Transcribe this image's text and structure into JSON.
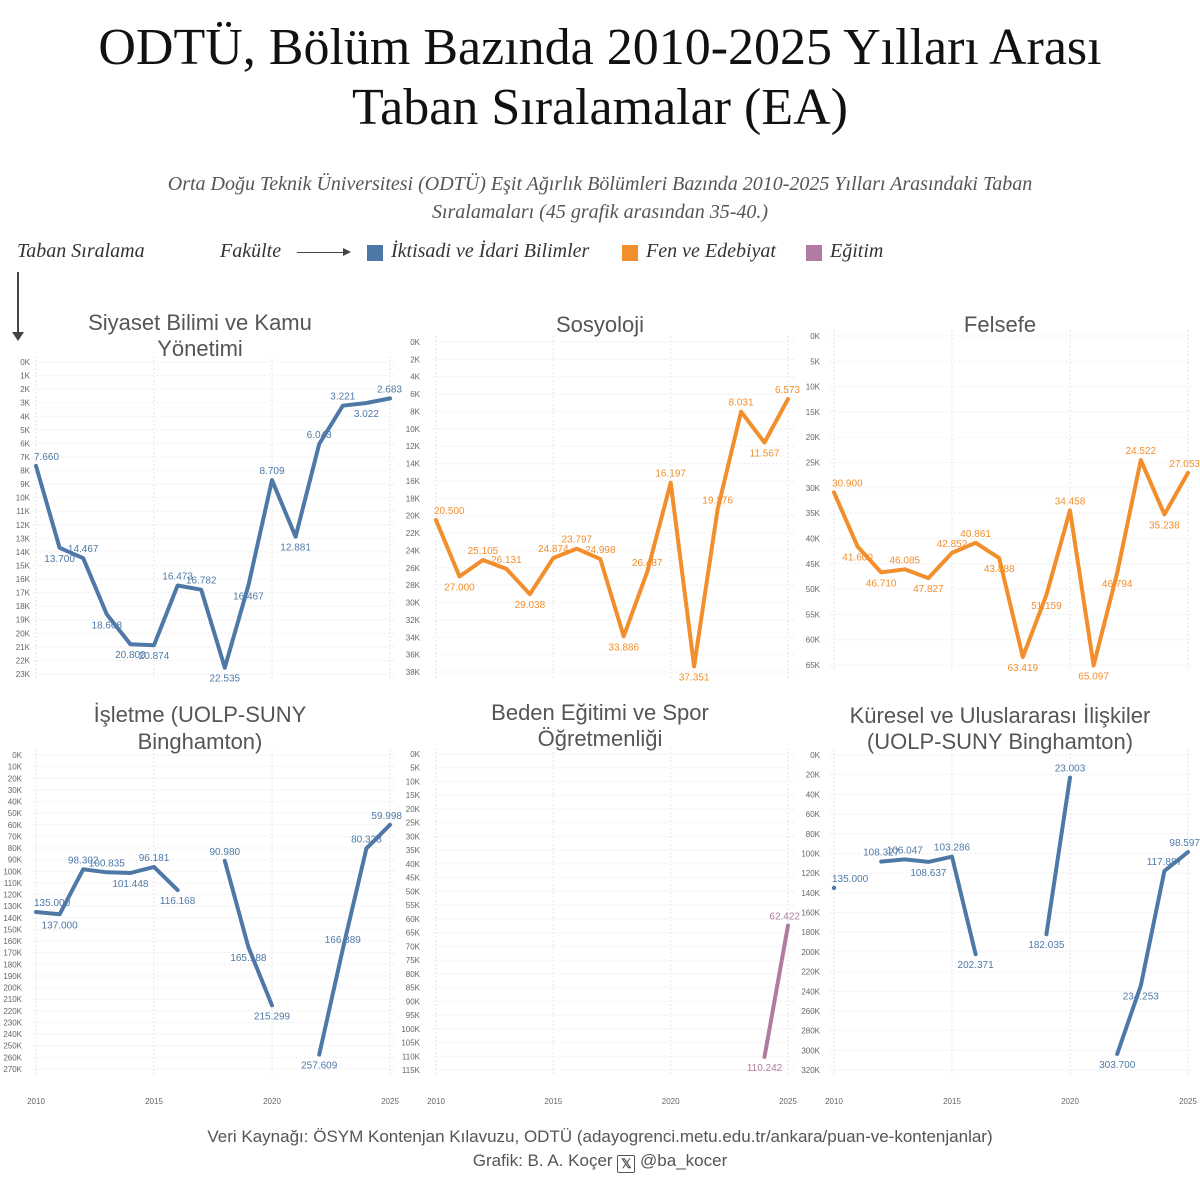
{
  "title_line1": "ODTÜ, Bölüm Bazında 2010-2025 Yılları Arası",
  "title_line2": "Taban Sıralamalar (EA)",
  "subtitle_line1": "Orta Doğu Teknik Üniversitesi (ODTÜ) Eşit Ağırlık Bölümleri Bazında 2010-2025 Yılları Arasındaki Taban",
  "subtitle_line2": "Sıralamaları (45 grafik arasından 35-40.)",
  "legend": {
    "y_label": "Taban Sıralama",
    "faculty_label": "Fakülte",
    "items": [
      {
        "label": "İktisadi ve İdari Bilimler",
        "color": "#4e79a7"
      },
      {
        "label": "Fen ve Edebiyat",
        "color": "#f28e2b"
      },
      {
        "label": "Eğitim",
        "color": "#b07aa1"
      }
    ]
  },
  "footer": {
    "source": "Veri Kaynağı: ÖSYM Kontenjan Kılavuzu, ODTÜ (adayogrenci.metu.edu.tr/ankara/puan-ve-kontenjanlar)",
    "credit_prefix": "Grafik: B. A. Koçer",
    "x_logo": "𝕏",
    "handle": "@ba_kocer"
  },
  "chart_data": [
    {
      "type": "line",
      "title_lines": [
        "Siyaset Bilimi ve Kamu",
        "Yönetimi"
      ],
      "color": "#4e79a7",
      "ylim": [
        0,
        23000
      ],
      "y_reversed": true,
      "y_ticks": [
        0,
        1000,
        2000,
        3000,
        4000,
        5000,
        6000,
        7000,
        8000,
        9000,
        10000,
        11000,
        12000,
        13000,
        14000,
        15000,
        16000,
        17000,
        18000,
        19000,
        20000,
        21000,
        22000,
        23000
      ],
      "y_tick_labels": [
        "0K",
        "1K",
        "2K",
        "3K",
        "4K",
        "5K",
        "6K",
        "7K",
        "8K",
        "9K",
        "10K",
        "11K",
        "12K",
        "13K",
        "14K",
        "15K",
        "16K",
        "17K",
        "18K",
        "19K",
        "20K",
        "21K",
        "22K",
        "23K"
      ],
      "x_ticks": [],
      "x_tick_labels": [],
      "points": [
        {
          "x": 2010,
          "y": 7660,
          "label": "7.660"
        },
        {
          "x": 2011,
          "y": 13700,
          "label": "13.700"
        },
        {
          "x": 2012,
          "y": 14467,
          "label": "14.467"
        },
        {
          "x": 2013,
          "y": 18608,
          "label": "18.608"
        },
        {
          "x": 2014,
          "y": 20800,
          "label": "20.800"
        },
        {
          "x": 2015,
          "y": 20874,
          "label": "20.874"
        },
        {
          "x": 2016,
          "y": 16473,
          "label": "16.473"
        },
        {
          "x": 2017,
          "y": 16782,
          "label": "16.782"
        },
        {
          "x": 2018,
          "y": 22535,
          "label": "22.535"
        },
        {
          "x": 2019,
          "y": 16467,
          "label": "16.467"
        },
        {
          "x": 2020,
          "y": 8709,
          "label": "8.709"
        },
        {
          "x": 2021,
          "y": 12881,
          "label": "12.881"
        },
        {
          "x": 2022,
          "y": 6043,
          "label": "6.043"
        },
        {
          "x": 2023,
          "y": 3221,
          "label": "3.221"
        },
        {
          "x": 2024,
          "y": 3022,
          "label": "3.022"
        },
        {
          "x": 2025,
          "y": 2683,
          "label": "2.683"
        }
      ]
    },
    {
      "type": "line",
      "title_lines": [
        "Sosyoloji"
      ],
      "color": "#f28e2b",
      "ylim": [
        0,
        38000
      ],
      "y_reversed": true,
      "y_ticks": [
        0,
        2000,
        4000,
        6000,
        8000,
        10000,
        12000,
        14000,
        16000,
        18000,
        20000,
        22000,
        24000,
        26000,
        28000,
        30000,
        32000,
        34000,
        36000,
        38000
      ],
      "y_tick_labels": [
        "0K",
        "2K",
        "4K",
        "6K",
        "8K",
        "10K",
        "12K",
        "14K",
        "16K",
        "18K",
        "20K",
        "22K",
        "24K",
        "26K",
        "28K",
        "30K",
        "32K",
        "34K",
        "36K",
        "38K"
      ],
      "x_ticks": [],
      "x_tick_labels": [],
      "points": [
        {
          "x": 2010,
          "y": 20500,
          "label": "20.500"
        },
        {
          "x": 2011,
          "y": 27000,
          "label": "27.000"
        },
        {
          "x": 2012,
          "y": 25105,
          "label": "25.105"
        },
        {
          "x": 2013,
          "y": 26131,
          "label": "26.131"
        },
        {
          "x": 2014,
          "y": 29038,
          "label": "29.038"
        },
        {
          "x": 2015,
          "y": 24874,
          "label": "24.874"
        },
        {
          "x": 2016,
          "y": 23797,
          "label": "23.797"
        },
        {
          "x": 2017,
          "y": 24998,
          "label": "24.998"
        },
        {
          "x": 2018,
          "y": 33886,
          "label": "33.886"
        },
        {
          "x": 2019,
          "y": 26487,
          "label": "26.487"
        },
        {
          "x": 2020,
          "y": 16197,
          "label": "16.197"
        },
        {
          "x": 2021,
          "y": 37351,
          "label": "37.351"
        },
        {
          "x": 2022,
          "y": 19276,
          "label": "19.276"
        },
        {
          "x": 2023,
          "y": 8031,
          "label": "8.031"
        },
        {
          "x": 2024,
          "y": 11567,
          "label": "11.567"
        },
        {
          "x": 2025,
          "y": 6573,
          "label": "6.573"
        }
      ]
    },
    {
      "type": "line",
      "title_lines": [
        "Felsefe"
      ],
      "color": "#f28e2b",
      "ylim": [
        0,
        65000
      ],
      "y_reversed": true,
      "y_ticks": [
        0,
        5000,
        10000,
        15000,
        20000,
        25000,
        30000,
        35000,
        40000,
        45000,
        50000,
        55000,
        60000,
        65000
      ],
      "y_tick_labels": [
        "0K",
        "5K",
        "10K",
        "15K",
        "20K",
        "25K",
        "30K",
        "35K",
        "40K",
        "45K",
        "50K",
        "55K",
        "60K",
        "65K"
      ],
      "x_ticks": [],
      "x_tick_labels": [],
      "points": [
        {
          "x": 2010,
          "y": 30900,
          "label": "30.900"
        },
        {
          "x": 2011,
          "y": 41600,
          "label": "41.600"
        },
        {
          "x": 2012,
          "y": 46710,
          "label": "46.710"
        },
        {
          "x": 2013,
          "y": 46085,
          "label": "46.085"
        },
        {
          "x": 2014,
          "y": 47827,
          "label": "47.827"
        },
        {
          "x": 2015,
          "y": 42852,
          "label": "42.852"
        },
        {
          "x": 2016,
          "y": 40861,
          "label": "40.861"
        },
        {
          "x": 2017,
          "y": 43888,
          "label": "43.888"
        },
        {
          "x": 2018,
          "y": 63419,
          "label": "63.419"
        },
        {
          "x": 2019,
          "y": 51159,
          "label": "51.159"
        },
        {
          "x": 2020,
          "y": 34458,
          "label": "34.458"
        },
        {
          "x": 2021,
          "y": 65097,
          "label": "65.097"
        },
        {
          "x": 2022,
          "y": 46794,
          "label": "46.794"
        },
        {
          "x": 2023,
          "y": 24522,
          "label": "24.522"
        },
        {
          "x": 2024,
          "y": 35238,
          "label": "35.238"
        },
        {
          "x": 2025,
          "y": 27053,
          "label": "27.053"
        }
      ]
    },
    {
      "type": "line",
      "title_lines": [
        "İşletme (UOLP-SUNY",
        "Binghamton)"
      ],
      "color": "#4e79a7",
      "ylim": [
        0,
        270000
      ],
      "y_reversed": true,
      "y_ticks": [
        0,
        10000,
        20000,
        30000,
        40000,
        50000,
        60000,
        70000,
        80000,
        90000,
        100000,
        110000,
        120000,
        130000,
        140000,
        150000,
        160000,
        170000,
        180000,
        190000,
        200000,
        210000,
        220000,
        230000,
        240000,
        250000,
        260000,
        270000
      ],
      "y_tick_labels": [
        "0K",
        "10K",
        "20K",
        "30K",
        "40K",
        "50K",
        "60K",
        "70K",
        "80K",
        "90K",
        "100K",
        "110K",
        "120K",
        "130K",
        "140K",
        "150K",
        "160K",
        "170K",
        "180K",
        "190K",
        "200K",
        "210K",
        "220K",
        "230K",
        "240K",
        "250K",
        "260K",
        "270K"
      ],
      "x_ticks": [
        2010,
        2015,
        2020,
        2025
      ],
      "x_tick_labels": [
        "2010",
        "2015",
        "2020",
        "2025"
      ],
      "points": [
        {
          "x": 2010,
          "y": 135000,
          "label": "135.000"
        },
        {
          "x": 2011,
          "y": 137000,
          "label": "137.000"
        },
        {
          "x": 2012,
          "y": 98302,
          "label": "98.302"
        },
        {
          "x": 2013,
          "y": 100835,
          "label": "100.835"
        },
        {
          "x": 2014,
          "y": 101448,
          "label": "101.448"
        },
        {
          "x": 2015,
          "y": 96181,
          "label": "96.181"
        },
        {
          "x": 2016,
          "y": 116168,
          "label": "116.168"
        },
        {
          "x": 2017,
          "y": null,
          "label": ""
        },
        {
          "x": 2018,
          "y": 90980,
          "label": "90.980"
        },
        {
          "x": 2019,
          "y": 165188,
          "label": "165.188"
        },
        {
          "x": 2020,
          "y": 215299,
          "label": "215.299"
        },
        {
          "x": 2021,
          "y": null,
          "label": ""
        },
        {
          "x": 2022,
          "y": 257609,
          "label": "257.609"
        },
        {
          "x": 2023,
          "y": 166889,
          "label": "166.889"
        },
        {
          "x": 2024,
          "y": 80328,
          "label": "80.328"
        },
        {
          "x": 2025,
          "y": 59998,
          "label": "59.998"
        }
      ]
    },
    {
      "type": "line",
      "title_lines": [
        "Beden Eğitimi ve Spor",
        "Öğretmenliği"
      ],
      "color": "#b07aa1",
      "ylim": [
        0,
        115000
      ],
      "y_reversed": true,
      "y_ticks": [
        0,
        5000,
        10000,
        15000,
        20000,
        25000,
        30000,
        35000,
        40000,
        45000,
        50000,
        55000,
        60000,
        65000,
        70000,
        75000,
        80000,
        85000,
        90000,
        95000,
        100000,
        105000,
        110000,
        115000
      ],
      "y_tick_labels": [
        "0K",
        "5K",
        "10K",
        "15K",
        "20K",
        "25K",
        "30K",
        "35K",
        "40K",
        "45K",
        "50K",
        "55K",
        "60K",
        "65K",
        "70K",
        "75K",
        "80K",
        "85K",
        "90K",
        "95K",
        "100K",
        "105K",
        "110K",
        "115K"
      ],
      "x_ticks": [
        2010,
        2015,
        2020,
        2025
      ],
      "x_tick_labels": [
        "2010",
        "2015",
        "2020",
        "2025"
      ],
      "points": [
        {
          "x": 2024,
          "y": 110242,
          "label": "110.242"
        },
        {
          "x": 2025,
          "y": 62422,
          "label": "62.422"
        }
      ]
    },
    {
      "type": "line",
      "title_lines": [
        "Küresel ve Uluslararası İlişkiler",
        "(UOLP-SUNY Binghamton)"
      ],
      "color": "#4e79a7",
      "ylim": [
        0,
        320000
      ],
      "y_reversed": true,
      "y_ticks": [
        0,
        20000,
        40000,
        60000,
        80000,
        100000,
        120000,
        140000,
        160000,
        180000,
        200000,
        220000,
        240000,
        260000,
        280000,
        300000,
        320000
      ],
      "y_tick_labels": [
        "0K",
        "20K",
        "40K",
        "60K",
        "80K",
        "100K",
        "120K",
        "140K",
        "160K",
        "180K",
        "200K",
        "220K",
        "240K",
        "260K",
        "280K",
        "300K",
        "320K"
      ],
      "x_ticks": [
        2010,
        2015,
        2020,
        2025
      ],
      "x_tick_labels": [
        "2010",
        "2015",
        "2020",
        "2025"
      ],
      "points": [
        {
          "x": 2010,
          "y": 135000,
          "label": "135.000"
        },
        {
          "x": 2011,
          "y": null,
          "label": ""
        },
        {
          "x": 2012,
          "y": 108327,
          "label": "108.327"
        },
        {
          "x": 2013,
          "y": 106047,
          "label": "106.047"
        },
        {
          "x": 2014,
          "y": 108637,
          "label": "108.637"
        },
        {
          "x": 2015,
          "y": 103286,
          "label": "103.286"
        },
        {
          "x": 2016,
          "y": 202371,
          "label": "202.371"
        },
        {
          "x": 2017,
          "y": null,
          "label": ""
        },
        {
          "x": 2018,
          "y": null,
          "label": ""
        },
        {
          "x": 2019,
          "y": 182035,
          "label": "182.035"
        },
        {
          "x": 2020,
          "y": 23003,
          "label": "23.003"
        },
        {
          "x": 2021,
          "y": null,
          "label": ""
        },
        {
          "x": 2022,
          "y": 303700,
          "label": "303.700"
        },
        {
          "x": 2023,
          "y": 234253,
          "label": "234.253"
        },
        {
          "x": 2024,
          "y": 117887,
          "label": "117.887"
        },
        {
          "x": 2025,
          "y": 98597,
          "label": "98.597"
        }
      ]
    }
  ]
}
